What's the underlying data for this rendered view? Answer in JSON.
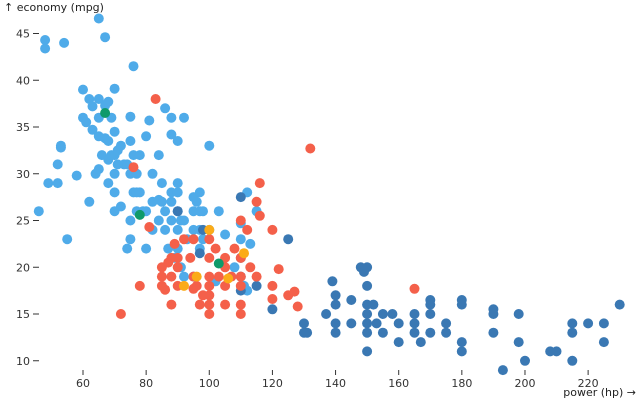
{
  "chart_data": {
    "type": "scatter",
    "title": "",
    "xlabel": "power (hp) →",
    "ylabel": "↑ economy (mpg)",
    "xlim": [
      46,
      232
    ],
    "ylim": [
      8.5,
      47
    ],
    "x_ticks": [
      60,
      80,
      100,
      120,
      140,
      160,
      180,
      200,
      220
    ],
    "y_ticks": [
      10,
      15,
      20,
      25,
      30,
      35,
      40,
      45
    ],
    "grid": false,
    "legend": "none",
    "colors": {
      "light_blue": "#4fabe9",
      "dark_blue": "#3a78b3",
      "red": "#f4604a",
      "orange": "#fbab18",
      "green": "#0f9a6a"
    },
    "series": [
      {
        "name": "light_blue",
        "color": "#4fabe9",
        "points": [
          [
            46,
            26
          ],
          [
            48,
            43.4
          ],
          [
            48,
            44.3
          ],
          [
            49,
            29
          ],
          [
            52,
            29
          ],
          [
            52,
            31
          ],
          [
            53,
            32.8
          ],
          [
            53,
            33
          ],
          [
            54,
            44
          ],
          [
            55,
            23
          ],
          [
            58,
            29.8
          ],
          [
            60,
            36
          ],
          [
            60,
            39
          ],
          [
            61,
            35.5
          ],
          [
            62,
            27
          ],
          [
            62,
            38
          ],
          [
            63,
            34.7
          ],
          [
            63,
            37.2
          ],
          [
            64,
            30
          ],
          [
            65,
            30.5
          ],
          [
            65,
            34
          ],
          [
            65,
            36
          ],
          [
            65,
            38
          ],
          [
            65,
            46.6
          ],
          [
            66,
            32
          ],
          [
            67,
            33.8
          ],
          [
            67,
            37.3
          ],
          [
            67,
            44.6
          ],
          [
            68,
            29
          ],
          [
            68,
            31.5
          ],
          [
            68,
            33.5
          ],
          [
            68,
            37.7
          ],
          [
            69,
            32
          ],
          [
            69,
            36
          ],
          [
            70,
            26
          ],
          [
            70,
            28
          ],
          [
            70,
            30
          ],
          [
            70,
            32
          ],
          [
            70,
            34.5
          ],
          [
            70,
            39.1
          ],
          [
            71,
            31
          ],
          [
            71,
            32.5
          ],
          [
            72,
            26.5
          ],
          [
            72,
            33
          ],
          [
            73,
            31
          ],
          [
            74,
            22
          ],
          [
            74,
            31
          ],
          [
            75,
            23
          ],
          [
            75,
            25
          ],
          [
            75,
            30
          ],
          [
            75,
            33.5
          ],
          [
            75,
            36.1
          ],
          [
            76,
            28
          ],
          [
            76,
            32
          ],
          [
            76,
            41.5
          ],
          [
            77,
            26
          ],
          [
            77,
            28
          ],
          [
            77,
            30
          ],
          [
            78,
            28
          ],
          [
            78,
            32
          ],
          [
            79,
            26
          ],
          [
            80,
            22
          ],
          [
            80,
            26
          ],
          [
            80,
            34
          ],
          [
            81,
            35.7
          ],
          [
            82,
            24
          ],
          [
            82,
            27
          ],
          [
            82,
            30
          ],
          [
            84,
            25
          ],
          [
            84,
            27.2
          ],
          [
            84,
            32
          ],
          [
            85,
            27
          ],
          [
            85,
            29
          ],
          [
            86,
            24
          ],
          [
            86,
            26
          ],
          [
            86,
            37
          ],
          [
            87,
            22
          ],
          [
            88,
            25
          ],
          [
            88,
            27
          ],
          [
            88,
            28
          ],
          [
            88,
            34.2
          ],
          [
            88,
            36
          ],
          [
            89,
            21
          ],
          [
            90,
            22
          ],
          [
            90,
            24
          ],
          [
            90,
            26
          ],
          [
            90,
            28
          ],
          [
            90,
            33.5
          ],
          [
            90,
            29
          ],
          [
            91,
            20
          ],
          [
            91,
            25
          ],
          [
            92,
            19
          ],
          [
            92,
            25
          ],
          [
            92,
            36
          ],
          [
            93,
            23
          ],
          [
            95,
            19
          ],
          [
            95,
            24
          ],
          [
            95,
            26
          ],
          [
            95,
            27.5
          ],
          [
            96,
            27
          ],
          [
            97,
            22
          ],
          [
            97,
            26
          ],
          [
            97,
            28
          ],
          [
            97,
            24
          ],
          [
            98,
            23
          ],
          [
            98,
            26
          ],
          [
            100,
            24
          ],
          [
            100,
            33
          ],
          [
            102,
            18.5
          ],
          [
            103,
            26
          ],
          [
            105,
            23.5
          ],
          [
            108,
            20
          ],
          [
            110,
            23
          ],
          [
            110,
            24.7
          ],
          [
            111,
            18
          ],
          [
            112,
            28
          ],
          [
            112,
            17.5
          ],
          [
            113,
            22.5
          ],
          [
            115,
            26
          ]
        ]
      },
      {
        "name": "dark_blue",
        "color": "#3a78b3",
        "points": [
          [
            90,
            26
          ],
          [
            97,
            21.5
          ],
          [
            98,
            24
          ],
          [
            110,
            21
          ],
          [
            110,
            19
          ],
          [
            110,
            27.5
          ],
          [
            110,
            17.5
          ],
          [
            115,
            18
          ],
          [
            120,
            15.5
          ],
          [
            125,
            23
          ],
          [
            130,
            14
          ],
          [
            130,
            13
          ],
          [
            131,
            13
          ],
          [
            137,
            15
          ],
          [
            139,
            18.5
          ],
          [
            140,
            17
          ],
          [
            140,
            16
          ],
          [
            140,
            14
          ],
          [
            140,
            13
          ],
          [
            145,
            16.5
          ],
          [
            145,
            14
          ],
          [
            148,
            20
          ],
          [
            149,
            19.5
          ],
          [
            150,
            20
          ],
          [
            150,
            18
          ],
          [
            150,
            16
          ],
          [
            150,
            15
          ],
          [
            150,
            14
          ],
          [
            150,
            13
          ],
          [
            150,
            11
          ],
          [
            152,
            16
          ],
          [
            153,
            14
          ],
          [
            155,
            15
          ],
          [
            155,
            13
          ],
          [
            158,
            15
          ],
          [
            160,
            14
          ],
          [
            160,
            12
          ],
          [
            165,
            14
          ],
          [
            165,
            13
          ],
          [
            165,
            15
          ],
          [
            167,
            12
          ],
          [
            170,
            13
          ],
          [
            170,
            15
          ],
          [
            170,
            16
          ],
          [
            170,
            16.5
          ],
          [
            175,
            14
          ],
          [
            175,
            13
          ],
          [
            180,
            16
          ],
          [
            180,
            16.5
          ],
          [
            180,
            12
          ],
          [
            180,
            11
          ],
          [
            190,
            15
          ],
          [
            190,
            13
          ],
          [
            190,
            15.5
          ],
          [
            193,
            9
          ],
          [
            198,
            15
          ],
          [
            198,
            12
          ],
          [
            200,
            10
          ],
          [
            208,
            11
          ],
          [
            210,
            11
          ],
          [
            215,
            14
          ],
          [
            215,
            13
          ],
          [
            215,
            10
          ],
          [
            220,
            14
          ],
          [
            225,
            14
          ],
          [
            225,
            12
          ],
          [
            230,
            16
          ]
        ]
      },
      {
        "name": "red",
        "color": "#f4604a",
        "points": [
          [
            72,
            15
          ],
          [
            76,
            30.7
          ],
          [
            78,
            18
          ],
          [
            81,
            24.3
          ],
          [
            83,
            38
          ],
          [
            85,
            20
          ],
          [
            85,
            19
          ],
          [
            85,
            18
          ],
          [
            86,
            17.6
          ],
          [
            87,
            20.5
          ],
          [
            88,
            21
          ],
          [
            88,
            19
          ],
          [
            88,
            16
          ],
          [
            89,
            22.5
          ],
          [
            90,
            18
          ],
          [
            90,
            21
          ],
          [
            90,
            20
          ],
          [
            92,
            23
          ],
          [
            94,
            21
          ],
          [
            95,
            17.7
          ],
          [
            95,
            23
          ],
          [
            95,
            19
          ],
          [
            96,
            18
          ],
          [
            97,
            16
          ],
          [
            98,
            17
          ],
          [
            100,
            23
          ],
          [
            100,
            21
          ],
          [
            100,
            19
          ],
          [
            100,
            18
          ],
          [
            100,
            17
          ],
          [
            100,
            16
          ],
          [
            100,
            15
          ],
          [
            102,
            22
          ],
          [
            103,
            19
          ],
          [
            105,
            21
          ],
          [
            105,
            18
          ],
          [
            105,
            16
          ],
          [
            105,
            20
          ],
          [
            107,
            19
          ],
          [
            108,
            22
          ],
          [
            110,
            25
          ],
          [
            110,
            21
          ],
          [
            110,
            19
          ],
          [
            110,
            18
          ],
          [
            110,
            16
          ],
          [
            110,
            15
          ],
          [
            112,
            24
          ],
          [
            113,
            20
          ],
          [
            115,
            19
          ],
          [
            115,
            27
          ],
          [
            116,
            25.5
          ],
          [
            116,
            29
          ],
          [
            120,
            24
          ],
          [
            120,
            18
          ],
          [
            120,
            16.6
          ],
          [
            122,
            19.8
          ],
          [
            125,
            17
          ],
          [
            127,
            17.4
          ],
          [
            128,
            15.8
          ],
          [
            132,
            32.7
          ],
          [
            165,
            17.7
          ]
        ]
      },
      {
        "name": "orange",
        "color": "#fbab18",
        "points": [
          [
            92,
            18
          ],
          [
            96,
            19
          ],
          [
            100,
            24
          ],
          [
            106,
            18.8
          ],
          [
            111,
            21.5
          ]
        ]
      },
      {
        "name": "green",
        "color": "#0f9a6a",
        "points": [
          [
            67,
            36.5
          ],
          [
            78,
            25.6
          ],
          [
            103,
            20.4
          ]
        ]
      }
    ]
  }
}
